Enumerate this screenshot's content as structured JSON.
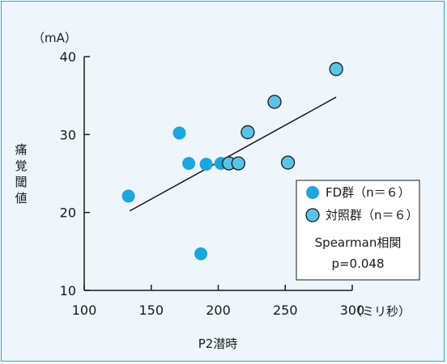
{
  "colors": {
    "frame_border": "#1aa6e0",
    "background": "#eef6fb",
    "fd_marker": "#1aa6e0",
    "control_marker": "#5cc3e8",
    "axis": "#1a1a1a"
  },
  "chart_data": {
    "type": "scatter",
    "title": "",
    "xlabel": "P2潜時",
    "ylabel": "痛覚閾値",
    "x_unit": "（ミリ秒）",
    "y_unit": "（mA）",
    "xlim": [
      100,
      300
    ],
    "ylim": [
      10,
      40
    ],
    "x_ticks": [
      100,
      150,
      200,
      250,
      300
    ],
    "y_ticks": [
      10,
      20,
      30,
      40
    ],
    "grid": false,
    "legend_position": "bottom-right",
    "series": [
      {
        "name": "FD群（n＝６）",
        "marker": "filled-circle",
        "x": [
          133,
          171,
          178,
          187,
          191,
          202
        ],
        "y": [
          22.1,
          30.2,
          26.3,
          14.7,
          26.2,
          26.3
        ]
      },
      {
        "name": "対照群（n＝６）",
        "marker": "outlined-circle",
        "x": [
          208,
          215,
          222,
          242,
          252,
          288
        ],
        "y": [
          26.3,
          26.3,
          30.3,
          34.2,
          26.4,
          38.4
        ]
      }
    ],
    "regression_line": {
      "x": [
        134,
        288
      ],
      "y": [
        20.2,
        34.8
      ]
    },
    "annotations": [
      "Spearman相関",
      "p=0.048"
    ]
  }
}
